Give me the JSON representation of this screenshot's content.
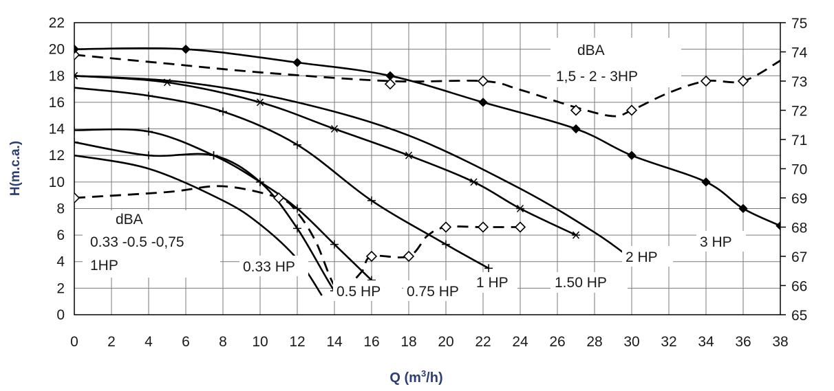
{
  "chart_data": {
    "type": "line",
    "ylabel": "H(m.c.a.)",
    "xlabel_base": "Q (m",
    "xlabel_sup": "3",
    "xlabel_tail": "/h)",
    "xlim": [
      0,
      38
    ],
    "ylim": [
      0,
      22
    ],
    "y2lim": [
      65,
      75
    ],
    "x_ticks": [
      "0",
      "2",
      "4",
      "6",
      "8",
      "10",
      "12",
      "14",
      "16",
      "18",
      "20",
      "22",
      "24",
      "26",
      "28",
      "30",
      "32",
      "34",
      "36",
      "38"
    ],
    "y_ticks": [
      "0",
      "2",
      "4",
      "6",
      "8",
      "10",
      "12",
      "14",
      "16",
      "18",
      "20",
      "22"
    ],
    "y2_ticks": [
      "65",
      "66",
      "67",
      "68",
      "69",
      "70",
      "71",
      "72",
      "73",
      "74",
      "75"
    ],
    "grid": true,
    "colors": {
      "line": "#000000",
      "grid": "#7a7a7a",
      "axis_title": "#2c3e72"
    },
    "series": [
      {
        "name": "0.33 HP",
        "points": [
          [
            0,
            12
          ],
          [
            4,
            11
          ],
          [
            8,
            8.6
          ],
          [
            10,
            6.8
          ],
          [
            12,
            4.2
          ],
          [
            13.3,
            1.5
          ]
        ],
        "marker": "none"
      },
      {
        "name": "0.5 HP",
        "points": [
          [
            0,
            13
          ],
          [
            4,
            12
          ],
          [
            7.5,
            12
          ],
          [
            10,
            10
          ],
          [
            12,
            6.5
          ],
          [
            14,
            1.8
          ],
          [
            14.3,
            2.2
          ]
        ],
        "marker": "plus"
      },
      {
        "name": "0.75 HP",
        "points": [
          [
            0,
            13.9
          ],
          [
            4,
            13.8
          ],
          [
            7.5,
            12
          ],
          [
            10,
            10
          ],
          [
            12,
            8
          ],
          [
            14,
            5.3
          ],
          [
            16,
            2.6
          ]
        ],
        "marker": "plus"
      },
      {
        "name": "1 HP",
        "points": [
          [
            0,
            17.1
          ],
          [
            4,
            16.5
          ],
          [
            8,
            15.3
          ],
          [
            12,
            12.8
          ],
          [
            16,
            8.6
          ],
          [
            20,
            5.3
          ],
          [
            22.3,
            3.5
          ]
        ],
        "marker": "plus"
      },
      {
        "name": "1.50 HP",
        "points": [
          [
            0,
            18
          ],
          [
            5,
            17.5
          ],
          [
            10,
            16
          ],
          [
            14,
            14
          ],
          [
            18,
            12
          ],
          [
            21.5,
            10
          ],
          [
            24,
            8
          ],
          [
            27,
            6
          ]
        ],
        "marker": "asterisk"
      },
      {
        "name": "2 HP",
        "points": [
          [
            0,
            18
          ],
          [
            6,
            17.5
          ],
          [
            12,
            16
          ],
          [
            18,
            13.5
          ],
          [
            24,
            9.5
          ],
          [
            28,
            6.2
          ],
          [
            30,
            4.2
          ]
        ],
        "marker": "none"
      },
      {
        "name": "3 HP",
        "points": [
          [
            0,
            20
          ],
          [
            6,
            20
          ],
          [
            12,
            19
          ],
          [
            17,
            18
          ],
          [
            22,
            16
          ],
          [
            27,
            14
          ],
          [
            30,
            12
          ],
          [
            34,
            10
          ],
          [
            36,
            8
          ],
          [
            38,
            6.7
          ]
        ],
        "marker": "diamond-filled"
      }
    ],
    "noise_series": [
      {
        "name": "dBA 1,5 - 2 - 3HP",
        "points": [
          [
            0,
            73.9
          ],
          [
            5,
            73.6
          ],
          [
            10,
            73.3
          ],
          [
            17,
            73
          ],
          [
            22,
            73
          ],
          [
            24,
            72.7
          ],
          [
            27,
            72.1
          ],
          [
            29,
            71.8
          ],
          [
            30,
            72
          ],
          [
            32,
            72.6
          ],
          [
            34,
            73
          ],
          [
            36,
            73
          ],
          [
            38,
            73.7
          ]
        ],
        "marker": "diamond-open",
        "style": "dashed"
      },
      {
        "name": "dBA 0.33 -0.5 -0.75 1HP",
        "points": [
          [
            0,
            69
          ],
          [
            5,
            69.2
          ],
          [
            8,
            69.4
          ],
          [
            11,
            69
          ],
          [
            12,
            68.5
          ],
          [
            13,
            67.5
          ],
          [
            14,
            66
          ],
          [
            14.7,
            66
          ],
          [
            15.5,
            66.5
          ],
          [
            16,
            67
          ],
          [
            18,
            67
          ],
          [
            19,
            67.7
          ],
          [
            20,
            68
          ],
          [
            22,
            68
          ],
          [
            24,
            68
          ]
        ],
        "marker": "diamond-open",
        "style": "dashed"
      }
    ],
    "annotations": {
      "dba_top_line1": "dBA",
      "dba_top_line2": "1,5 - 2 - 3HP",
      "dba_left_line1": "dBA",
      "dba_left_line2": "0.33 -0.5 -0,75",
      "dba_left_line3": "1HP",
      "hp_033": "0.33 HP",
      "hp_05": "0.5 HP",
      "hp_075": "0.75 HP",
      "hp_1": "1 HP",
      "hp_150": "1.50 HP",
      "hp_2": "2 HP",
      "hp_3": "3 HP"
    }
  }
}
